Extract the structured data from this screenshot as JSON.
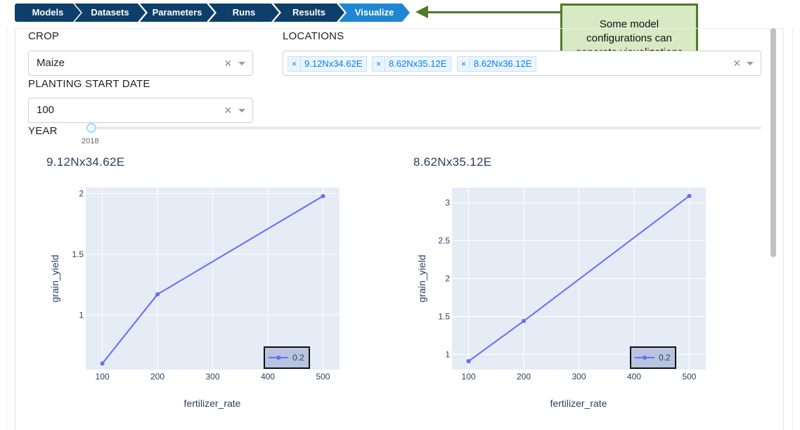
{
  "breadcrumb": [
    {
      "label": "Models",
      "active": false
    },
    {
      "label": "Datasets",
      "active": false
    },
    {
      "label": "Parameters",
      "active": false
    },
    {
      "label": "Runs",
      "active": false
    },
    {
      "label": "Results",
      "active": false
    },
    {
      "label": "Visualize",
      "active": true
    }
  ],
  "callout": {
    "text": "Some model\nconfigurations can\ngenerate visualizations"
  },
  "filters": {
    "crop": {
      "label": "CROP",
      "value": "Maize",
      "clear_icon": "×"
    },
    "locations": {
      "label": "LOCATIONS",
      "tags": [
        "9.12Nx34.62E",
        "8.62Nx35.12E",
        "8.62Nx36.12E"
      ],
      "tag_remove": "×",
      "clear_icon": "×"
    },
    "planting_start_date": {
      "label": "PLANTING START DATE",
      "value": "100",
      "clear_icon": "×"
    },
    "year": {
      "label": "YEAR",
      "value": "2018"
    }
  },
  "colors": {
    "accent": "#1e86d2",
    "nav": "#0d3f6a",
    "callout_bg": "#d7eac4",
    "callout_border": "#4f7a28",
    "series": "#636efa",
    "plot_bg": "#e5ecf6"
  },
  "chart_data": [
    {
      "type": "line",
      "title": "9.12Nx34.62E",
      "xlabel": "fertilizer_rate",
      "ylabel": "grain_yield",
      "x_ticks": [
        100,
        200,
        300,
        400,
        500
      ],
      "y_ticks": [
        1,
        1.5,
        2
      ],
      "xlim": [
        70,
        530
      ],
      "ylim": [
        0.55,
        2.05
      ],
      "legend_position": "bottom-right",
      "series": [
        {
          "name": "0.2",
          "x": [
            100,
            200,
            500
          ],
          "y": [
            0.6,
            1.17,
            1.98
          ]
        }
      ]
    },
    {
      "type": "line",
      "title": "8.62Nx35.12E",
      "xlabel": "fertilizer_rate",
      "ylabel": "grain_yield",
      "x_ticks": [
        100,
        200,
        300,
        400,
        500
      ],
      "y_ticks": [
        1,
        1.5,
        2,
        2.5,
        3
      ],
      "xlim": [
        70,
        530
      ],
      "ylim": [
        0.8,
        3.2
      ],
      "legend_position": "bottom-right",
      "series": [
        {
          "name": "0.2",
          "x": [
            100,
            200,
            500
          ],
          "y": [
            0.91,
            1.44,
            3.09
          ]
        }
      ]
    }
  ]
}
